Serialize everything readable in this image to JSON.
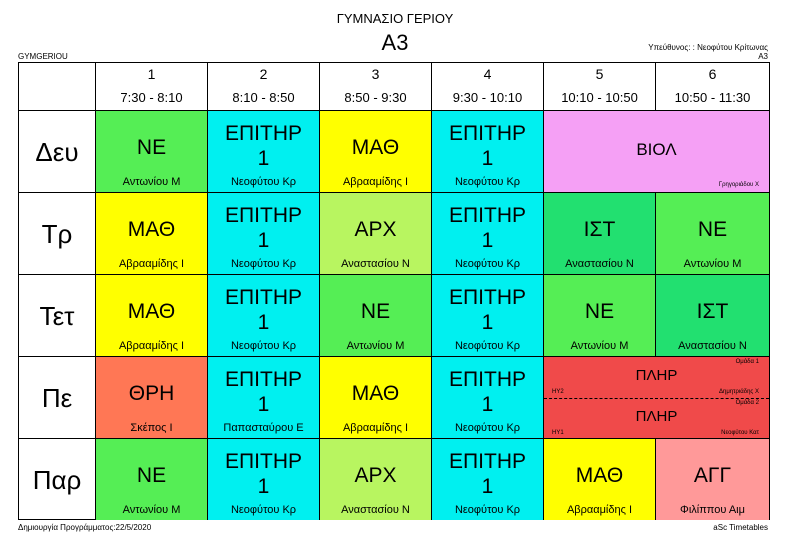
{
  "header": {
    "school": "ΓΥΜΝΑΣΙΟ ΓΕΡΙΟΥ",
    "class_name": "Α3",
    "left_code": "GYMGERIOU",
    "responsible": "Υπεύθυνος: : Νεοφύτου Κρίτωνας",
    "responsible_sub": "Α3"
  },
  "footer": {
    "created": "Δημιουργία Προγράμματος:22/5/2020",
    "software": "aSc Timetables"
  },
  "periods": [
    {
      "num": "1",
      "time": "7:30 - 8:10"
    },
    {
      "num": "2",
      "time": "8:10 - 8:50"
    },
    {
      "num": "3",
      "time": "8:50 - 9:30"
    },
    {
      "num": "4",
      "time": "9:30 - 10:10"
    },
    {
      "num": "5",
      "time": "10:10 - 10:50"
    },
    {
      "num": "6",
      "time": "10:50 - 11:30"
    }
  ],
  "days": [
    {
      "label": "Δευ",
      "lessons": [
        {
          "span": 1,
          "subject": "ΝΕ",
          "teacher": "Αντωνίου Μ",
          "color": "#55ee55"
        },
        {
          "span": 1,
          "subject": "ΕΠΙΤΗΡ 1",
          "teacher": "Νεοφύτου Κρ",
          "color": "#00f0f0"
        },
        {
          "span": 1,
          "subject": "ΜΑΘ",
          "teacher": "Αβρααμίδης Ι",
          "color": "#ffff00"
        },
        {
          "span": 1,
          "subject": "ΕΠΙΤΗΡ 1",
          "teacher": "Νεοφύτου Κρ",
          "color": "#00f0f0"
        },
        {
          "span": 2,
          "subject": "ΒΙΟΛ",
          "teacher": "Γρηγοριάδου Χ",
          "color": "#f5a0f5",
          "small_teacher": true
        }
      ]
    },
    {
      "label": "Τρ",
      "lessons": [
        {
          "span": 1,
          "subject": "ΜΑΘ",
          "teacher": "Αβρααμίδης Ι",
          "color": "#ffff00"
        },
        {
          "span": 1,
          "subject": "ΕΠΙΤΗΡ 1",
          "teacher": "Νεοφύτου Κρ",
          "color": "#00f0f0"
        },
        {
          "span": 1,
          "subject": "ΑΡΧ",
          "teacher": "Αναστασίου Ν",
          "color": "#b8f560"
        },
        {
          "span": 1,
          "subject": "ΕΠΙΤΗΡ 1",
          "teacher": "Νεοφύτου Κρ",
          "color": "#00f0f0"
        },
        {
          "span": 1,
          "subject": "ΙΣΤ",
          "teacher": "Αναστασίου Ν",
          "color": "#22e070"
        },
        {
          "span": 1,
          "subject": "ΝΕ",
          "teacher": "Αντωνίου Μ",
          "color": "#55ee55"
        }
      ]
    },
    {
      "label": "Τετ",
      "lessons": [
        {
          "span": 1,
          "subject": "ΜΑΘ",
          "teacher": "Αβρααμίδης Ι",
          "color": "#ffff00"
        },
        {
          "span": 1,
          "subject": "ΕΠΙΤΗΡ 1",
          "teacher": "Νεοφύτου Κρ",
          "color": "#00f0f0"
        },
        {
          "span": 1,
          "subject": "ΝΕ",
          "teacher": "Αντωνίου Μ",
          "color": "#55ee55"
        },
        {
          "span": 1,
          "subject": "ΕΠΙΤΗΡ 1",
          "teacher": "Νεοφύτου Κρ",
          "color": "#00f0f0"
        },
        {
          "span": 1,
          "subject": "ΝΕ",
          "teacher": "Αντωνίου Μ",
          "color": "#55ee55"
        },
        {
          "span": 1,
          "subject": "ΙΣΤ",
          "teacher": "Αναστασίου Ν",
          "color": "#22e070"
        }
      ]
    },
    {
      "label": "Πε",
      "lessons": [
        {
          "span": 1,
          "subject": "ΘΡΗ",
          "teacher": "Σκέπος Ι",
          "color": "#ff7755"
        },
        {
          "span": 1,
          "subject": "ΕΠΙΤΗΡ 1",
          "teacher": "Παπασταύρου Ε",
          "color": "#00f0f0"
        },
        {
          "span": 1,
          "subject": "ΜΑΘ",
          "teacher": "Αβρααμίδης Ι",
          "color": "#ffff00"
        },
        {
          "span": 1,
          "subject": "ΕΠΙΤΗΡ 1",
          "teacher": "Νεοφύτου Κρ",
          "color": "#00f0f0"
        },
        {
          "span": 2,
          "split": true,
          "color": "#f04a4a",
          "groups": [
            {
              "group": "Ομάδα 1",
              "subject": "ΠΛΗΡ",
              "room": "ΗΥ2",
              "teacher": "Δημητριάδης Χ"
            },
            {
              "group": "Ομάδα 2",
              "subject": "ΠΛΗΡ",
              "room": "ΗΥ1",
              "teacher": "Νεοφύτου Κατ"
            }
          ]
        }
      ]
    },
    {
      "label": "Παρ",
      "lessons": [
        {
          "span": 1,
          "subject": "ΝΕ",
          "teacher": "Αντωνίου Μ",
          "color": "#55ee55"
        },
        {
          "span": 1,
          "subject": "ΕΠΙΤΗΡ 1",
          "teacher": "Νεοφύτου Κρ",
          "color": "#00f0f0"
        },
        {
          "span": 1,
          "subject": "ΑΡΧ",
          "teacher": "Αναστασίου Ν",
          "color": "#b8f560"
        },
        {
          "span": 1,
          "subject": "ΕΠΙΤΗΡ 1",
          "teacher": "Νεοφύτου Κρ",
          "color": "#00f0f0"
        },
        {
          "span": 1,
          "subject": "ΜΑΘ",
          "teacher": "Αβρααμίδης Ι",
          "color": "#ffff00"
        },
        {
          "span": 1,
          "subject": "ΑΓΓ",
          "teacher": "Φιλίππου Αιμ",
          "color": "#ff9999"
        }
      ]
    }
  ]
}
